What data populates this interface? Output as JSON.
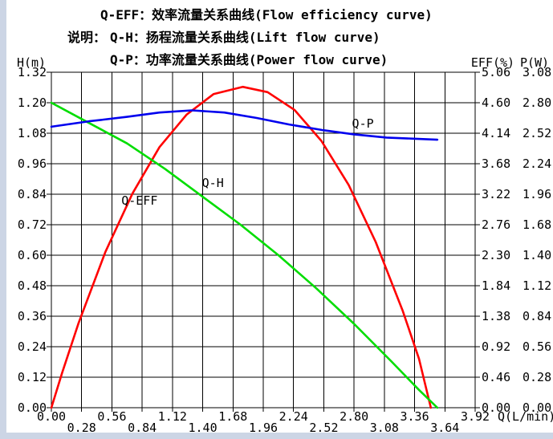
{
  "window": {
    "background": "#ffffff",
    "edge_color": "#ccd5e5"
  },
  "legend": {
    "label": "说明：",
    "lines": [
      "Q-EFF：效率流量关系曲线(Flow efficiency curve)",
      "Q-H：扬程流量关系曲线(Lift flow curve)",
      "Q-P：功率流量关系曲线(Power flow curve)"
    ]
  },
  "chart_data": {
    "type": "line",
    "grid": true,
    "grid_color": "#000000",
    "x_axis": {
      "label": "Q(L/min)",
      "min": 0,
      "max": 3.92,
      "step": 0.28,
      "tick_labels": [
        "0.00",
        "0.28",
        "0.56",
        "0.84",
        "1.12",
        "1.40",
        "1.68",
        "1.96",
        "2.24",
        "2.52",
        "2.80",
        "3.08",
        "3.36",
        "3.64",
        "3.92"
      ]
    },
    "y_axis_left": {
      "label": "H(m)",
      "min": 0,
      "max": 1.32,
      "step": 0.12,
      "tick_labels": [
        "1.32",
        "1.20",
        "1.08",
        "0.96",
        "0.84",
        "0.72",
        "0.60",
        "0.48",
        "0.36",
        "0.24",
        "0.12",
        "0.00"
      ]
    },
    "y_axis_right_eff": {
      "label": "EFF(%)",
      "min": 0,
      "max": 5.06,
      "step": 0.46,
      "tick_labels": [
        "5.06",
        "4.60",
        "4.14",
        "3.68",
        "3.22",
        "2.76",
        "2.30",
        "1.84",
        "1.38",
        "0.92",
        "0.46",
        "0.00"
      ]
    },
    "y_axis_right_p": {
      "label": "P(W)",
      "min": 0,
      "max": 3.08,
      "step": 0.28,
      "tick_labels": [
        "3.08",
        "2.80",
        "2.52",
        "2.24",
        "1.96",
        "1.68",
        "1.40",
        "1.12",
        "0.84",
        "0.56",
        "0.28",
        "0.00"
      ]
    },
    "series": [
      {
        "name": "Q-EFF",
        "color": "#ff0000",
        "axis": "eff",
        "axis_max": 5.06,
        "points": [
          [
            0,
            0
          ],
          [
            0.1,
            0.53
          ],
          [
            0.25,
            1.27
          ],
          [
            0.5,
            2.35
          ],
          [
            0.75,
            3.23
          ],
          [
            1.0,
            3.93
          ],
          [
            1.25,
            4.42
          ],
          [
            1.5,
            4.73
          ],
          [
            1.77,
            4.84
          ],
          [
            2.0,
            4.76
          ],
          [
            2.25,
            4.49
          ],
          [
            2.5,
            4.02
          ],
          [
            2.75,
            3.36
          ],
          [
            3.0,
            2.5
          ],
          [
            3.25,
            1.46
          ],
          [
            3.4,
            0.74
          ],
          [
            3.51,
            0
          ]
        ],
        "label_frac": [
          0.208,
          0.383
        ]
      },
      {
        "name": "Q-H",
        "color": "#00dd00",
        "axis": "h",
        "axis_max": 1.32,
        "points": [
          [
            0,
            1.2
          ],
          [
            0.35,
            1.12
          ],
          [
            0.7,
            1.04
          ],
          [
            1.05,
            0.94
          ],
          [
            1.4,
            0.83
          ],
          [
            1.75,
            0.72
          ],
          [
            2.1,
            0.6
          ],
          [
            2.45,
            0.47
          ],
          [
            2.8,
            0.33
          ],
          [
            3.15,
            0.18
          ],
          [
            3.4,
            0.07
          ],
          [
            3.57,
            0
          ]
        ],
        "label_frac": [
          0.381,
          0.33
        ]
      },
      {
        "name": "Q-P",
        "color": "#0000ee",
        "axis": "p",
        "axis_max": 3.08,
        "points": [
          [
            0,
            2.58
          ],
          [
            0.35,
            2.63
          ],
          [
            0.7,
            2.67
          ],
          [
            1.0,
            2.71
          ],
          [
            1.3,
            2.73
          ],
          [
            1.6,
            2.71
          ],
          [
            1.9,
            2.66
          ],
          [
            2.2,
            2.6
          ],
          [
            2.5,
            2.55
          ],
          [
            2.8,
            2.51
          ],
          [
            3.1,
            2.48
          ],
          [
            3.35,
            2.47
          ],
          [
            3.57,
            2.46
          ]
        ],
        "label_frac": [
          0.735,
          0.153
        ]
      }
    ]
  }
}
